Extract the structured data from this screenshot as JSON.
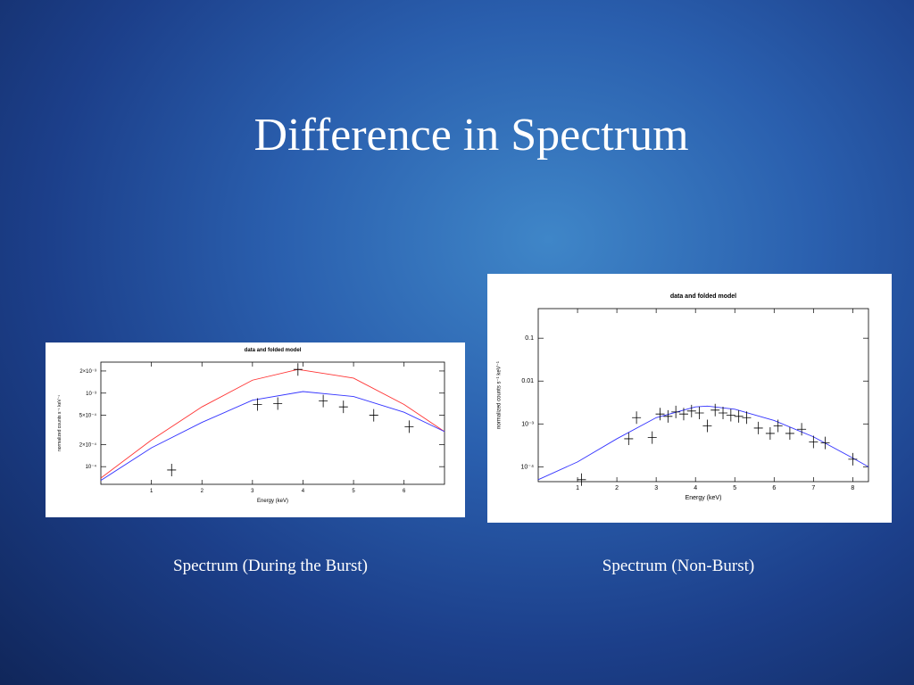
{
  "slide": {
    "title": "Difference in Spectrum",
    "captions": [
      "Spectrum (During the Burst)",
      "Spectrum (Non-Burst)"
    ]
  },
  "chart_data": [
    {
      "type": "line",
      "title": "data and folded model",
      "x_label": "Energy (keV)",
      "y_label": "normalized counts s⁻¹ keV⁻¹",
      "log_y": true,
      "xlim": [
        0,
        6.8
      ],
      "ylim": [
        5.75e-05,
        0.00264
      ],
      "xticks": [
        1,
        2,
        3,
        4,
        5,
        6
      ],
      "yticks": [
        {
          "value": 0.0001,
          "label": "10⁻⁴"
        },
        {
          "value": 0.0002,
          "label": "2×10⁻⁴"
        },
        {
          "value": 0.0005,
          "label": "5×10⁻⁴"
        },
        {
          "value": 0.001,
          "label": "10⁻³"
        },
        {
          "value": 0.002,
          "label": "2×10⁻³"
        }
      ],
      "series": [
        {
          "color": "#ff3333",
          "x": [
            0,
            1,
            2,
            3,
            3.9,
            5,
            6,
            6.8
          ],
          "values": [
            7e-05,
            0.00023,
            0.00065,
            0.0015,
            0.0021,
            0.0016,
            0.0007,
            0.0003
          ]
        },
        {
          "color": "#3333ff",
          "x": [
            0,
            1,
            2,
            3,
            4,
            5,
            6,
            6.8
          ],
          "values": [
            6.5e-05,
            0.00018,
            0.0004,
            0.0008,
            0.00105,
            0.0009,
            0.00055,
            0.0003
          ]
        },
        {
          "color": "#000000",
          "marker": "cross",
          "x": [
            1.4,
            3.1,
            3.5,
            3.9,
            4.4,
            4.8,
            5.4,
            6.1
          ],
          "values": [
            9e-05,
            0.0007,
            0.00072,
            0.0021,
            0.00078,
            0.00065,
            0.0005,
            0.00035
          ]
        }
      ]
    },
    {
      "type": "line",
      "title": "data and folded model",
      "x_label": "Energy (keV)",
      "y_label": "normalized counts s⁻¹ keV⁻¹",
      "log_y": true,
      "xlim": [
        0,
        8.4
      ],
      "ylim": [
        4.5e-05,
        0.49
      ],
      "xticks": [
        1,
        2,
        3,
        4,
        5,
        6,
        7,
        8
      ],
      "yticks": [
        {
          "value": 0.0001,
          "label": "10⁻⁴"
        },
        {
          "value": 0.001,
          "label": "10⁻³"
        },
        0.01,
        0.1
      ],
      "series": [
        {
          "color": "#3333ff",
          "x": [
            0,
            1,
            2,
            3,
            4,
            4.3,
            5,
            6,
            7,
            8,
            8.4
          ],
          "values": [
            5e-05,
            0.00013,
            0.00045,
            0.0014,
            0.0025,
            0.0026,
            0.0022,
            0.0012,
            0.0005,
            0.00016,
            0.0001
          ]
        },
        {
          "color": "#000000",
          "marker": "cross",
          "x": [
            1.1,
            2.3,
            2.5,
            2.9,
            3.1,
            3.3,
            3.5,
            3.7,
            3.9,
            4.1,
            4.3,
            4.5,
            4.7,
            4.9,
            5.1,
            5.3,
            5.6,
            5.9,
            6.1,
            6.4,
            6.7,
            7.0,
            7.3,
            8.0
          ],
          "values": [
            5e-05,
            0.00045,
            0.0014,
            0.00048,
            0.0017,
            0.0015,
            0.0019,
            0.0017,
            0.002,
            0.0018,
            0.0009,
            0.0021,
            0.0018,
            0.0016,
            0.0015,
            0.0014,
            0.0008,
            0.0006,
            0.0009,
            0.0006,
            0.00075,
            0.00038,
            0.00036,
            0.00015
          ]
        }
      ]
    }
  ]
}
